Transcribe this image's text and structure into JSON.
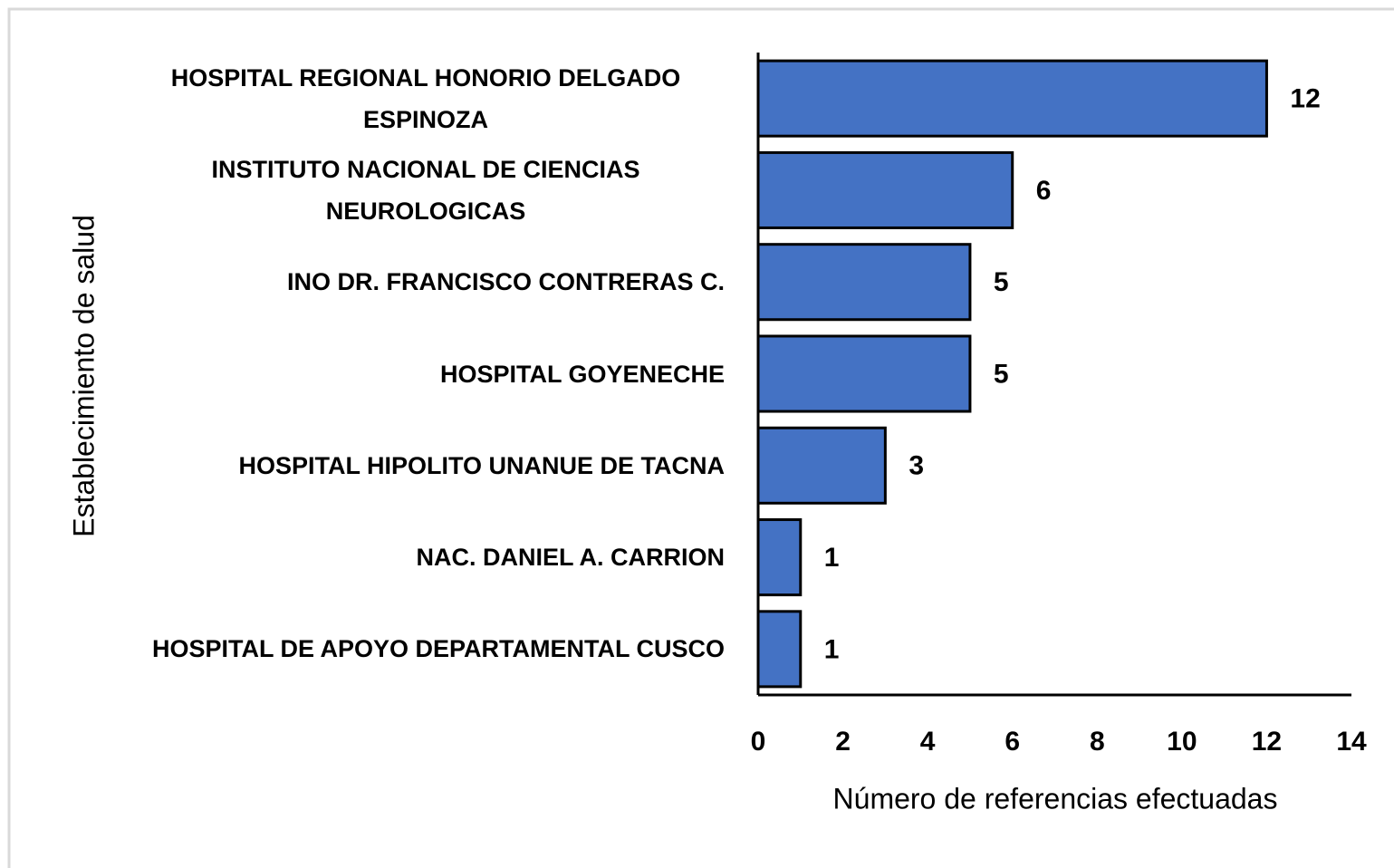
{
  "chart_data": {
    "type": "hbar",
    "categories": [
      "HOSPITAL REGIONAL HONORIO DELGADO ESPINOZA",
      "INSTITUTO NACIONAL DE CIENCIAS NEUROLOGICAS",
      "INO DR. FRANCISCO CONTRERAS C.",
      "HOSPITAL GOYENECHE",
      "HOSPITAL HIPOLITO UNANUE DE TACNA",
      "NAC. DANIEL A. CARRION",
      "HOSPITAL DE APOYO DEPARTAMENTAL CUSCO"
    ],
    "values": [
      12,
      6,
      5,
      5,
      3,
      1,
      1
    ],
    "color": "#4472c4",
    "xlim": [
      0,
      14
    ],
    "xticks": [
      0,
      2,
      4,
      6,
      8,
      10,
      12,
      14
    ],
    "x_label": "Número de referencias efectuadas",
    "y_label": "Establecimiento de salud",
    "grid": false
  }
}
